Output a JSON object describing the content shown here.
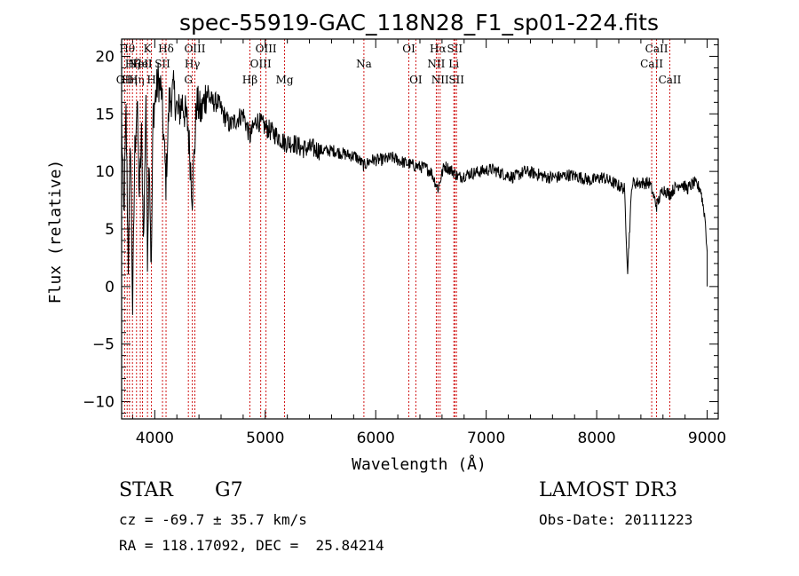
{
  "chart_data": {
    "type": "line",
    "title": "spec-55919-GAC_118N28_F1_sp01-224.fits",
    "xlabel": "Wavelength (Å)",
    "ylabel": "Flux (relative)",
    "xlim": [
      3700,
      9100
    ],
    "ylim": [
      -11.5,
      21.5
    ],
    "xticks": [
      4000,
      5000,
      6000,
      7000,
      8000,
      9000
    ],
    "yticks": [
      -10,
      -5,
      0,
      5,
      10,
      15,
      20
    ],
    "series": [
      {
        "name": "flux",
        "x": [
          3700,
          3720,
          3740,
          3760,
          3780,
          3800,
          3820,
          3840,
          3860,
          3880,
          3900,
          3920,
          3934,
          3950,
          3968,
          3985,
          4000,
          4030,
          4060,
          4101,
          4130,
          4170,
          4210,
          4250,
          4300,
          4340,
          4380,
          4420,
          4470,
          4520,
          4570,
          4620,
          4680,
          4740,
          4800,
          4861,
          4920,
          4980,
          5050,
          5120,
          5175,
          5250,
          5330,
          5420,
          5520,
          5620,
          5720,
          5820,
          5893,
          5960,
          6050,
          6150,
          6250,
          6350,
          6450,
          6500,
          6563,
          6620,
          6700,
          6750,
          6850,
          6950,
          7050,
          7150,
          7250,
          7350,
          7450,
          7550,
          7650,
          7750,
          7850,
          7950,
          8050,
          8150,
          8250,
          8280,
          8320,
          8400,
          8480,
          8542,
          8600,
          8662,
          8700,
          8760,
          8820,
          8880,
          8940,
          8980,
          9000
        ],
        "y": [
          14,
          6,
          15,
          2,
          13,
          -2,
          12,
          16,
          8,
          13,
          4,
          17,
          3,
          12,
          1,
          15,
          16,
          18,
          17,
          9,
          16,
          17,
          15,
          16,
          14,
          8,
          16,
          15,
          17,
          16,
          16,
          15,
          14,
          14.5,
          15,
          13,
          14.5,
          14,
          13.5,
          13,
          12.5,
          12.5,
          12,
          12,
          11.8,
          11.8,
          11.5,
          11.3,
          10.5,
          11,
          11,
          11.2,
          10.8,
          10.5,
          10.3,
          10,
          8.5,
          10.5,
          10,
          9.5,
          9.8,
          10,
          10.2,
          9.8,
          9.5,
          10,
          9.8,
          9.5,
          9.5,
          9.7,
          9.5,
          9.2,
          9.5,
          9,
          8.5,
          1.5,
          9,
          9,
          9,
          7,
          8.5,
          8,
          8.5,
          9,
          8.5,
          9,
          8.5,
          6,
          3
        ]
      }
    ],
    "lines": [
      {
        "x": 3727,
        "label": "OII",
        "row": 3
      },
      {
        "x": 3750,
        "label": "Hθ",
        "row": 1
      },
      {
        "x": 3771,
        "label": "Hη",
        "row": 3
      },
      {
        "x": 3798,
        "label": "Hζ",
        "row": 2
      },
      {
        "x": 3835,
        "label": "Hη",
        "row": 3
      },
      {
        "x": 3869,
        "label": "NeII",
        "row": 2
      },
      {
        "x": 3889,
        "label": "HeI",
        "row": 2
      },
      {
        "x": 3934,
        "label": "K",
        "row": 1
      },
      {
        "x": 3970,
        "label": "H",
        "row": 3
      },
      {
        "x": 4070,
        "label": "SII",
        "row": 2
      },
      {
        "x": 4102,
        "label": "Hδ",
        "row": 1
      },
      {
        "x": 4304,
        "label": "G",
        "row": 3
      },
      {
        "x": 4340,
        "label": "Hγ",
        "row": 2
      },
      {
        "x": 4363,
        "label": "OIII",
        "row": 1
      },
      {
        "x": 4861,
        "label": "Hβ",
        "row": 3
      },
      {
        "x": 4959,
        "label": "OIII",
        "row": 2
      },
      {
        "x": 5007,
        "label": "OIII",
        "row": 1
      },
      {
        "x": 5175,
        "label": "Mg",
        "row": 3
      },
      {
        "x": 5893,
        "label": "Na",
        "row": 2
      },
      {
        "x": 6300,
        "label": "OI",
        "row": 1
      },
      {
        "x": 6363,
        "label": "OI",
        "row": 3
      },
      {
        "x": 6548,
        "label": "NII",
        "row": 2
      },
      {
        "x": 6563,
        "label": "Hα",
        "row": 1
      },
      {
        "x": 6583,
        "label": "NII",
        "row": 3
      },
      {
        "x": 6707,
        "label": "Li",
        "row": 2
      },
      {
        "x": 6716,
        "label": "SII",
        "row": 1
      },
      {
        "x": 6731,
        "label": "SII",
        "row": 3
      },
      {
        "x": 8498,
        "label": "CaII",
        "row": 2
      },
      {
        "x": 8542,
        "label": "CaII",
        "row": 1
      },
      {
        "x": 8662,
        "label": "CaII",
        "row": 3
      }
    ]
  },
  "info": {
    "object_class": "STAR",
    "subclass": "G7",
    "survey": "LAMOST DR3",
    "redshift": "cz = -69.7 ± 35.7 km/s",
    "obs_date": "Obs-Date: 20111223",
    "coords": "RA = 118.17092, DEC =  25.84214"
  }
}
